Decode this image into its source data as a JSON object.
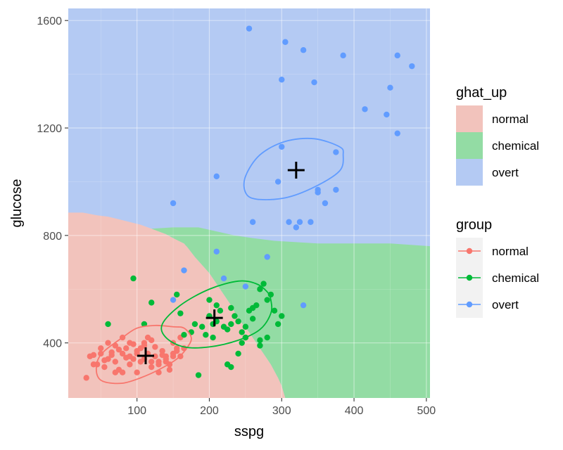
{
  "chart_data": {
    "type": "scatter",
    "xlabel": "sspg",
    "ylabel": "glucose",
    "xlim": [
      5,
      505
    ],
    "ylim": [
      195,
      1645
    ],
    "x_ticks": [
      100,
      200,
      300,
      400,
      500
    ],
    "y_ticks": [
      400,
      800,
      1200,
      1600
    ],
    "x_tick_labels": [
      "100",
      "200",
      "300",
      "400",
      "500"
    ],
    "y_tick_labels": [
      "400",
      "800",
      "1200",
      "1600"
    ],
    "grid": true,
    "legend_position": "right",
    "legends": [
      {
        "title": "ghat_up",
        "kind": "fill",
        "entries": [
          {
            "label": "normal",
            "color": "#F2C3BC"
          },
          {
            "label": "chemical",
            "color": "#93DCA4"
          },
          {
            "label": "overt",
            "color": "#B4CAF3"
          }
        ]
      },
      {
        "title": "group",
        "kind": "point",
        "entries": [
          {
            "label": "normal",
            "color": "#F8766D"
          },
          {
            "label": "chemical",
            "color": "#00BA38"
          },
          {
            "label": "overt",
            "color": "#619CFF"
          }
        ]
      }
    ],
    "regions": [
      {
        "name": "normal",
        "color": "#F2C3BC",
        "polygon": [
          [
            5,
            195
          ],
          [
            5,
            885
          ],
          [
            25,
            885
          ],
          [
            45,
            875
          ],
          [
            60,
            870
          ],
          [
            75,
            860
          ],
          [
            90,
            850
          ],
          [
            105,
            840
          ],
          [
            120,
            825
          ],
          [
            130,
            815
          ],
          [
            140,
            805
          ],
          [
            150,
            790
          ],
          [
            165,
            770
          ],
          [
            170,
            755
          ],
          [
            180,
            720
          ],
          [
            190,
            690
          ],
          [
            200,
            660
          ],
          [
            210,
            620
          ],
          [
            220,
            580
          ],
          [
            230,
            540
          ],
          [
            240,
            490
          ],
          [
            255,
            440
          ],
          [
            270,
            380
          ],
          [
            285,
            320
          ],
          [
            295,
            270
          ],
          [
            300,
            240
          ],
          [
            305,
            195
          ]
        ]
      },
      {
        "name": "chemical",
        "color": "#93DCA4",
        "polygon": [
          [
            305,
            195
          ],
          [
            300,
            240
          ],
          [
            295,
            270
          ],
          [
            285,
            320
          ],
          [
            270,
            380
          ],
          [
            255,
            440
          ],
          [
            240,
            490
          ],
          [
            230,
            540
          ],
          [
            220,
            580
          ],
          [
            210,
            620
          ],
          [
            200,
            660
          ],
          [
            190,
            690
          ],
          [
            180,
            720
          ],
          [
            170,
            755
          ],
          [
            165,
            770
          ],
          [
            150,
            790
          ],
          [
            140,
            805
          ],
          [
            130,
            815
          ],
          [
            120,
            825
          ],
          [
            150,
            830
          ],
          [
            185,
            830
          ],
          [
            210,
            815
          ],
          [
            235,
            800
          ],
          [
            260,
            790
          ],
          [
            290,
            780
          ],
          [
            320,
            775
          ],
          [
            350,
            770
          ],
          [
            400,
            770
          ],
          [
            450,
            770
          ],
          [
            505,
            760
          ],
          [
            505,
            195
          ]
        ]
      }
    ],
    "background_region": {
      "name": "overt",
      "color": "#B4CAF3"
    },
    "series": [
      {
        "name": "normal",
        "color": "#F8766D",
        "points": [
          [
            30,
            270
          ],
          [
            35,
            350
          ],
          [
            40,
            355
          ],
          [
            45,
            320
          ],
          [
            50,
            360
          ],
          [
            55,
            310
          ],
          [
            60,
            340
          ],
          [
            65,
            365
          ],
          [
            70,
            330
          ],
          [
            75,
            300
          ],
          [
            80,
            360
          ],
          [
            85,
            380
          ],
          [
            90,
            350
          ],
          [
            95,
            340
          ],
          [
            100,
            370
          ],
          [
            105,
            330
          ],
          [
            110,
            400
          ],
          [
            115,
            360
          ],
          [
            120,
            310
          ],
          [
            125,
            350
          ],
          [
            130,
            330
          ],
          [
            135,
            370
          ],
          [
            140,
            350
          ],
          [
            145,
            320
          ],
          [
            150,
            400
          ],
          [
            155,
            380
          ],
          [
            160,
            420
          ],
          [
            165,
            380
          ],
          [
            60,
            400
          ],
          [
            70,
            390
          ],
          [
            80,
            420
          ],
          [
            90,
            400
          ],
          [
            100,
            360
          ],
          [
            110,
            390
          ],
          [
            120,
            410
          ],
          [
            130,
            290
          ],
          [
            140,
            330
          ],
          [
            150,
            360
          ],
          [
            50,
            380
          ],
          [
            65,
            355
          ],
          [
            75,
            375
          ],
          [
            85,
            345
          ],
          [
            95,
            395
          ],
          [
            105,
            380
          ],
          [
            115,
            420
          ],
          [
            125,
            385
          ],
          [
            135,
            355
          ],
          [
            145,
            300
          ],
          [
            155,
            370
          ],
          [
            160,
            350
          ],
          [
            100,
            290
          ],
          [
            80,
            290
          ],
          [
            70,
            290
          ],
          [
            40,
            320
          ],
          [
            55,
            335
          ],
          [
            90,
            320
          ],
          [
            110,
            340
          ],
          [
            120,
            330
          ],
          [
            130,
            320
          ],
          [
            140,
            340
          ],
          [
            150,
            350
          ]
        ]
      },
      {
        "name": "chemical",
        "color": "#00BA38",
        "points": [
          [
            185,
            280
          ],
          [
            195,
            430
          ],
          [
            200,
            500
          ],
          [
            205,
            470
          ],
          [
            210,
            480
          ],
          [
            215,
            520
          ],
          [
            220,
            460
          ],
          [
            225,
            450
          ],
          [
            230,
            470
          ],
          [
            235,
            500
          ],
          [
            240,
            480
          ],
          [
            245,
            440
          ],
          [
            250,
            460
          ],
          [
            255,
            520
          ],
          [
            260,
            490
          ],
          [
            265,
            540
          ],
          [
            270,
            600
          ],
          [
            275,
            620
          ],
          [
            280,
            560
          ],
          [
            285,
            580
          ],
          [
            290,
            520
          ],
          [
            295,
            470
          ],
          [
            300,
            500
          ],
          [
            270,
            410
          ],
          [
            205,
            420
          ],
          [
            190,
            460
          ],
          [
            180,
            470
          ],
          [
            175,
            440
          ],
          [
            165,
            430
          ],
          [
            160,
            510
          ],
          [
            155,
            580
          ],
          [
            120,
            550
          ],
          [
            110,
            470
          ],
          [
            95,
            640
          ],
          [
            60,
            470
          ],
          [
            200,
            560
          ],
          [
            210,
            540
          ],
          [
            230,
            530
          ],
          [
            260,
            530
          ],
          [
            250,
            420
          ],
          [
            245,
            400
          ],
          [
            270,
            390
          ],
          [
            280,
            420
          ],
          [
            225,
            320
          ],
          [
            230,
            310
          ],
          [
            240,
            360
          ],
          [
            250,
            420
          ]
        ]
      },
      {
        "name": "overt",
        "color": "#619CFF",
        "points": [
          [
            255,
            1570
          ],
          [
            305,
            1520
          ],
          [
            330,
            1490
          ],
          [
            385,
            1470
          ],
          [
            460,
            1470
          ],
          [
            480,
            1430
          ],
          [
            300,
            1380
          ],
          [
            345,
            1370
          ],
          [
            450,
            1350
          ],
          [
            415,
            1270
          ],
          [
            445,
            1250
          ],
          [
            460,
            1180
          ],
          [
            300,
            1130
          ],
          [
            375,
            1110
          ],
          [
            210,
            1020
          ],
          [
            295,
            1000
          ],
          [
            350,
            970
          ],
          [
            350,
            960
          ],
          [
            375,
            970
          ],
          [
            360,
            920
          ],
          [
            150,
            920
          ],
          [
            260,
            850
          ],
          [
            310,
            850
          ],
          [
            325,
            850
          ],
          [
            340,
            850
          ],
          [
            320,
            830
          ],
          [
            210,
            740
          ],
          [
            280,
            720
          ],
          [
            165,
            670
          ],
          [
            220,
            640
          ],
          [
            250,
            610
          ],
          [
            150,
            560
          ],
          [
            330,
            540
          ]
        ]
      }
    ],
    "centroids": [
      {
        "name": "normal",
        "x": 112,
        "y": 352,
        "color": "#000000"
      },
      {
        "name": "chemical",
        "x": 207,
        "y": 493,
        "color": "#000000"
      },
      {
        "name": "overt",
        "x": 320,
        "y": 1043,
        "color": "#000000"
      }
    ],
    "ellipses": [
      {
        "name": "normal",
        "color": "#F8766D",
        "points": [
          [
            165,
            455
          ],
          [
            150,
            460
          ],
          [
            125,
            465
          ],
          [
            100,
            455
          ],
          [
            80,
            420
          ],
          [
            55,
            370
          ],
          [
            45,
            330
          ],
          [
            45,
            280
          ],
          [
            55,
            255
          ],
          [
            80,
            250
          ],
          [
            105,
            270
          ],
          [
            130,
            300
          ],
          [
            155,
            340
          ],
          [
            170,
            385
          ],
          [
            175,
            420
          ]
        ]
      },
      {
        "name": "chemical",
        "color": "#00BA38",
        "points": [
          [
            280,
            590
          ],
          [
            265,
            620
          ],
          [
            240,
            630
          ],
          [
            200,
            600
          ],
          [
            160,
            540
          ],
          [
            135,
            470
          ],
          [
            140,
            420
          ],
          [
            165,
            385
          ],
          [
            200,
            385
          ],
          [
            240,
            410
          ],
          [
            270,
            450
          ],
          [
            285,
            510
          ],
          [
            285,
            560
          ]
        ]
      },
      {
        "name": "overt",
        "color": "#619CFF",
        "points": [
          [
            380,
            1130
          ],
          [
            345,
            1160
          ],
          [
            305,
            1150
          ],
          [
            270,
            1100
          ],
          [
            250,
            1020
          ],
          [
            250,
            960
          ],
          [
            265,
            935
          ],
          [
            305,
            940
          ],
          [
            345,
            980
          ],
          [
            380,
            1040
          ],
          [
            385,
            1100
          ]
        ]
      }
    ]
  }
}
